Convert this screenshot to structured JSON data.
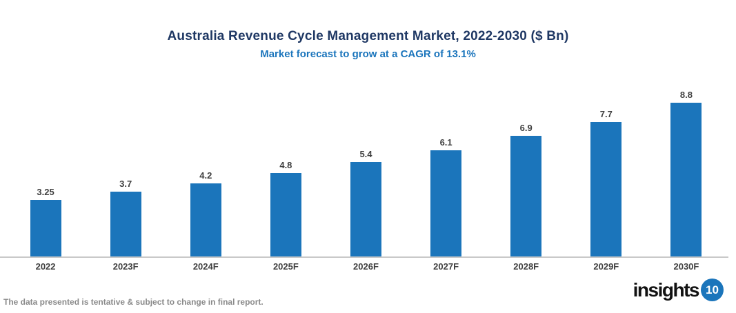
{
  "header": {
    "title": "Australia Revenue Cycle Management Market, 2022-2030 ($ Bn)",
    "subtitle": "Market forecast to grow at a CAGR of 13.1%"
  },
  "chart_data": {
    "type": "bar",
    "categories": [
      "2022",
      "2023F",
      "2024F",
      "2025F",
      "2026F",
      "2027F",
      "2028F",
      "2029F",
      "2030F"
    ],
    "values": [
      3.25,
      3.7,
      4.2,
      4.8,
      5.4,
      6.1,
      6.9,
      7.7,
      8.8
    ],
    "value_labels": [
      "3.25",
      "3.7",
      "4.2",
      "4.8",
      "5.4",
      "6.1",
      "6.9",
      "7.7",
      "8.8"
    ],
    "title": "Australia Revenue Cycle Management Market, 2022-2030 ($ Bn)",
    "subtitle": "Market forecast to grow at a CAGR of 13.1%",
    "xlabel": "",
    "ylabel": "",
    "ylim": [
      0,
      10
    ],
    "grid": false,
    "legend": false,
    "bar_color": "#1B75BB",
    "baseline_axis": "x-axis only, light gray line, no y-axis, no gridlines, value labels above each bar"
  },
  "footer": {
    "disclaimer": "The data presented is tentative & subject to change in final report.",
    "logo_text": "insights",
    "logo_badge": "10"
  },
  "colors": {
    "title": "#1F3864",
    "subtitle": "#1B75BC",
    "bar": "#1B75BB",
    "axis_line": "#C9C9C9",
    "data_label": "#404040",
    "disclaimer": "#8A8A8A",
    "logo_badge_bg": "#1B75BB"
  }
}
